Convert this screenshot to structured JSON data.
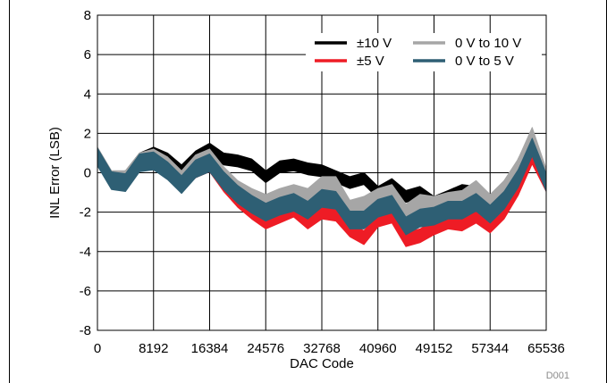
{
  "chart_data": {
    "type": "line",
    "title": "",
    "xlabel": "DAC Code",
    "ylabel": "INL Error (LSB)",
    "xlim": [
      0,
      65536
    ],
    "ylim": [
      -8,
      8
    ],
    "xticks": [
      "0",
      "8192",
      "16384",
      "24576",
      "32768",
      "40960",
      "49152",
      "57344",
      "65536"
    ],
    "yticks": [
      "8",
      "6",
      "4",
      "2",
      "0",
      "-2",
      "-4",
      "-6",
      "-8"
    ],
    "grid": true,
    "legend_position": "top-right",
    "annotation": "D001",
    "x": [
      0,
      2048,
      4096,
      6144,
      8192,
      10240,
      12288,
      14336,
      16384,
      18432,
      20480,
      22528,
      24576,
      26624,
      28672,
      30720,
      32768,
      34816,
      36864,
      38912,
      40960,
      43008,
      45056,
      47104,
      49152,
      51200,
      53248,
      55296,
      57344,
      59392,
      61440,
      63488,
      65535
    ],
    "series": [
      {
        "name": "±10 V",
        "color": "#000000",
        "center": [
          0.9,
          -0.3,
          -0.2,
          0.7,
          1.0,
          0.7,
          0.1,
          0.8,
          1.2,
          0.7,
          0.6,
          0.4,
          -0.2,
          0.3,
          0.4,
          0.2,
          0.1,
          -0.2,
          -0.5,
          -0.3,
          -1.0,
          -0.6,
          -1.2,
          -1.0,
          -1.5,
          -1.2,
          -0.9,
          -1.0,
          -1.5,
          -1.2,
          0.4,
          1.8,
          -0.3
        ],
        "spread": [
          0.6,
          0.6,
          0.6,
          0.6,
          0.6,
          0.6,
          0.6,
          0.6,
          0.6,
          0.6,
          0.6,
          0.6,
          0.6,
          0.6,
          0.6,
          0.6,
          0.6,
          0.6,
          0.6,
          0.6,
          0.6,
          0.6,
          0.6,
          0.6,
          0.6,
          0.6,
          0.6,
          0.6,
          0.6,
          0.6,
          0.6,
          0.6,
          0.6
        ]
      },
      {
        "name": "±5 V",
        "color": "#ee1c25",
        "center": [
          0.8,
          -0.4,
          -0.5,
          0.6,
          0.7,
          0.2,
          -0.6,
          0.1,
          0.4,
          -0.6,
          -1.4,
          -2.0,
          -2.5,
          -2.2,
          -1.9,
          -2.5,
          -2.0,
          -2.1,
          -2.9,
          -3.3,
          -2.4,
          -2.2,
          -3.4,
          -3.2,
          -2.8,
          -2.5,
          -2.6,
          -2.2,
          -2.7,
          -2.0,
          -0.8,
          0.8,
          -0.6
        ],
        "spread": [
          0.7,
          0.7,
          0.7,
          0.7,
          0.7,
          0.7,
          0.7,
          0.7,
          0.7,
          0.7,
          0.7,
          0.7,
          0.7,
          0.7,
          0.7,
          0.7,
          0.7,
          0.7,
          0.7,
          0.7,
          0.7,
          0.7,
          0.7,
          0.7,
          0.7,
          0.7,
          0.7,
          0.7,
          0.7,
          0.7,
          0.7,
          0.7,
          0.7
        ]
      },
      {
        "name": "0 V to 10 V",
        "color": "#a6a6a6",
        "center": [
          0.9,
          -0.3,
          -0.3,
          0.6,
          0.8,
          0.4,
          -0.3,
          0.5,
          0.8,
          -0.1,
          -0.8,
          -1.2,
          -1.5,
          -1.2,
          -1.0,
          -1.2,
          -0.6,
          -0.6,
          -1.8,
          -1.6,
          -1.2,
          -1.0,
          -2.0,
          -1.5,
          -1.6,
          -1.4,
          -1.3,
          -0.8,
          -1.5,
          -0.8,
          0.3,
          1.9,
          -0.2
        ],
        "spread": [
          0.8,
          0.8,
          0.8,
          0.8,
          0.8,
          0.8,
          0.8,
          0.8,
          0.8,
          0.8,
          0.8,
          0.8,
          0.8,
          0.8,
          0.8,
          0.8,
          0.8,
          0.8,
          0.8,
          0.8,
          0.8,
          0.8,
          0.8,
          0.8,
          0.8,
          0.8,
          0.8,
          0.8,
          0.8,
          0.8,
          0.8,
          0.8,
          0.8
        ]
      },
      {
        "name": "0 V to 5 V",
        "color": "#2e5f74",
        "center": [
          0.8,
          -0.4,
          -0.5,
          0.5,
          0.6,
          0.1,
          -0.6,
          0.2,
          0.5,
          -0.4,
          -1.1,
          -1.6,
          -2.0,
          -1.7,
          -1.5,
          -1.9,
          -1.3,
          -1.4,
          -2.4,
          -2.4,
          -1.8,
          -1.6,
          -2.7,
          -2.3,
          -2.2,
          -1.9,
          -1.9,
          -1.5,
          -2.1,
          -1.4,
          -0.3,
          1.3,
          -0.5
        ],
        "spread": [
          0.9,
          0.9,
          0.9,
          0.9,
          0.9,
          0.9,
          0.9,
          0.9,
          0.9,
          0.9,
          0.9,
          0.9,
          0.9,
          0.9,
          0.9,
          0.9,
          0.9,
          0.9,
          0.9,
          0.9,
          0.9,
          0.9,
          0.9,
          0.9,
          0.9,
          0.9,
          0.9,
          0.9,
          0.9,
          0.9,
          0.9,
          0.9,
          0.9
        ]
      }
    ]
  }
}
